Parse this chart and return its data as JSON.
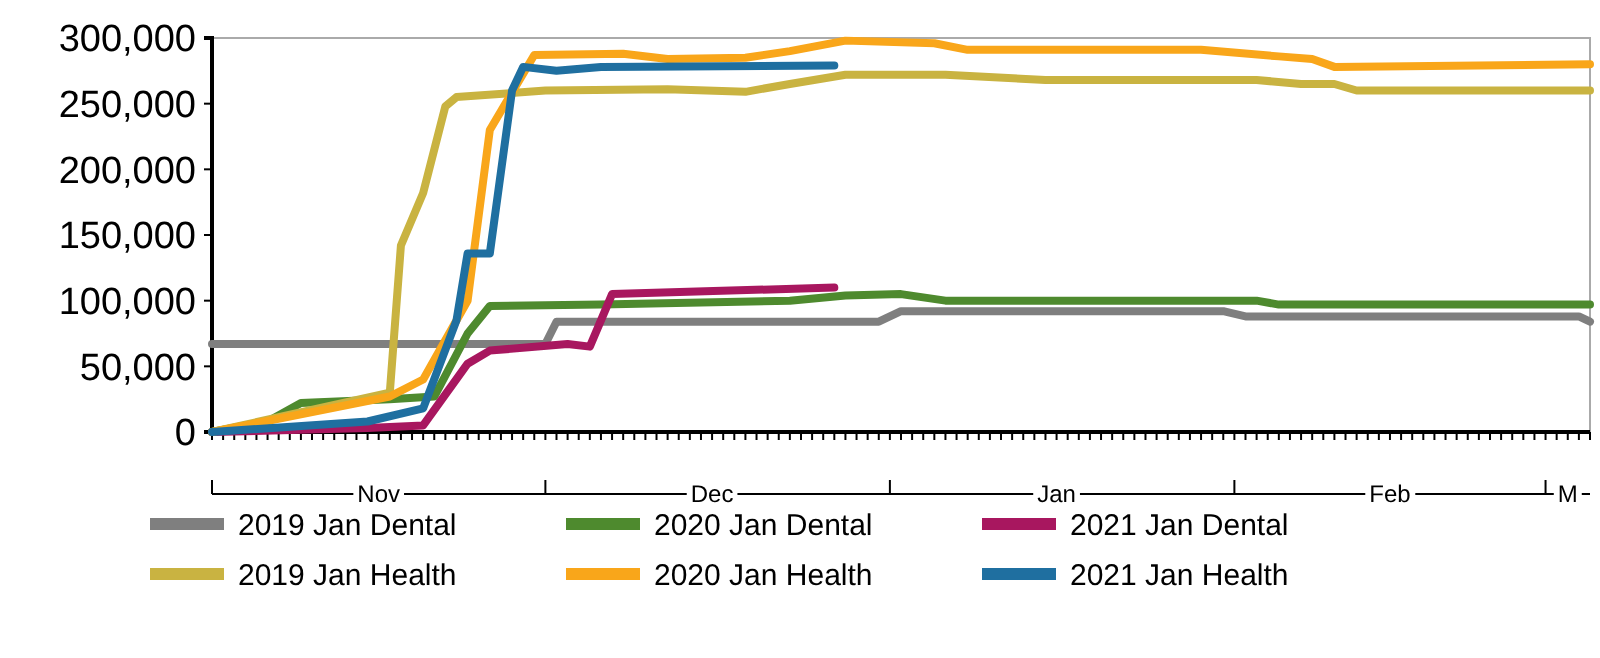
{
  "chart_data": {
    "type": "line",
    "xlim": [
      "2020-11-01",
      "2021-03-05"
    ],
    "ylim": [
      0,
      300000
    ],
    "yticks": [
      0,
      {
        "value": 50000,
        "label": "50,000"
      },
      {
        "value": 100000,
        "label": "100,000"
      },
      {
        "value": 150000,
        "label": "150,000"
      },
      {
        "value": 200000,
        "label": "200,000"
      },
      {
        "value": 250000,
        "label": "250,000"
      },
      {
        "value": 300000,
        "label": "300,000"
      }
    ],
    "xticks": [
      {
        "value": "2020-11-01",
        "label": null
      },
      {
        "value": "2020-11-16",
        "label": "Nov"
      },
      {
        "value": "2020-12-01",
        "label": null
      },
      {
        "value": "2020-12-16",
        "label": "Dec"
      },
      {
        "value": "2021-01-01",
        "label": null
      },
      {
        "value": "2021-01-16",
        "label": "Jan"
      },
      {
        "value": "2021-02-01",
        "label": null
      },
      {
        "value": "2021-02-15",
        "label": "Feb"
      },
      {
        "value": "2021-03-01",
        "label": null
      },
      {
        "value": "2021-03-03",
        "label": "M"
      }
    ],
    "grid": false,
    "legend": "bottom",
    "marker": "none",
    "line_style": "solid",
    "series": [
      {
        "name": "2019 Jan Dental",
        "color": "#7f7f7f",
        "x": [
          "2020-11-01",
          "2020-12-01",
          "2020-12-02",
          "2020-12-31",
          "2021-01-02",
          "2021-01-31",
          "2021-02-02",
          "2021-03-04",
          "2021-03-05"
        ],
        "values": [
          67000,
          67000,
          84000,
          84000,
          92000,
          92000,
          88000,
          88000,
          84000
        ]
      },
      {
        "name": "2020 Jan Dental",
        "color": "#4e8a2e",
        "x": [
          "2020-11-01",
          "2020-11-06",
          "2020-11-09",
          "2020-11-17",
          "2020-11-21",
          "2020-11-24",
          "2020-11-26",
          "2020-12-06",
          "2020-12-23",
          "2020-12-28",
          "2021-01-02",
          "2021-01-06",
          "2021-02-03",
          "2021-02-05",
          "2021-03-05"
        ],
        "values": [
          0,
          8000,
          22000,
          25000,
          27000,
          75000,
          96000,
          97000,
          100000,
          104000,
          105000,
          100000,
          100000,
          97000,
          97000
        ]
      },
      {
        "name": "2021 Jan Dental",
        "color": "#a8175f",
        "x": [
          "2020-11-01",
          "2020-11-15",
          "2020-11-20",
          "2020-11-24",
          "2020-11-26",
          "2020-12-03",
          "2020-12-05",
          "2020-12-07",
          "2020-12-27"
        ],
        "values": [
          0,
          3000,
          5000,
          52000,
          62000,
          67000,
          65000,
          105000,
          110000
        ]
      },
      {
        "name": "2019 Jan Health",
        "color": "#c9b341",
        "x": [
          "2020-11-01",
          "2020-11-17",
          "2020-11-18",
          "2020-11-20",
          "2020-11-22",
          "2020-11-23",
          "2020-12-01",
          "2020-12-12",
          "2020-12-19",
          "2020-12-23",
          "2020-12-28",
          "2021-01-06",
          "2021-01-15",
          "2021-02-03",
          "2021-02-07",
          "2021-02-10",
          "2021-02-12",
          "2021-03-05"
        ],
        "values": [
          0,
          30000,
          142000,
          182000,
          248000,
          255000,
          260000,
          261000,
          259000,
          265000,
          272000,
          272000,
          268000,
          268000,
          265000,
          265000,
          260000,
          260000
        ]
      },
      {
        "name": "2020 Jan Health",
        "color": "#f9a61a",
        "x": [
          "2020-11-01",
          "2020-11-17",
          "2020-11-20",
          "2020-11-24",
          "2020-11-26",
          "2020-11-30",
          "2020-12-08",
          "2020-12-12",
          "2020-12-19",
          "2020-12-23",
          "2020-12-28",
          "2021-01-05",
          "2021-01-08",
          "2021-01-29",
          "2021-02-05",
          "2021-02-08",
          "2021-02-10",
          "2021-03-05"
        ],
        "values": [
          0,
          27000,
          40000,
          100000,
          230000,
          287000,
          288000,
          284000,
          285000,
          290000,
          298000,
          296000,
          291000,
          291000,
          286000,
          284000,
          278000,
          280000
        ]
      },
      {
        "name": "2021 Jan Health",
        "color": "#1f6fa0",
        "x": [
          "2020-11-01",
          "2020-11-15",
          "2020-11-20",
          "2020-11-23",
          "2020-11-24",
          "2020-11-26",
          "2020-11-28",
          "2020-11-29",
          "2020-12-02",
          "2020-12-06",
          "2020-12-27"
        ],
        "values": [
          0,
          8000,
          18000,
          85000,
          136000,
          136000,
          260000,
          278000,
          275000,
          278000,
          279000
        ]
      }
    ]
  }
}
